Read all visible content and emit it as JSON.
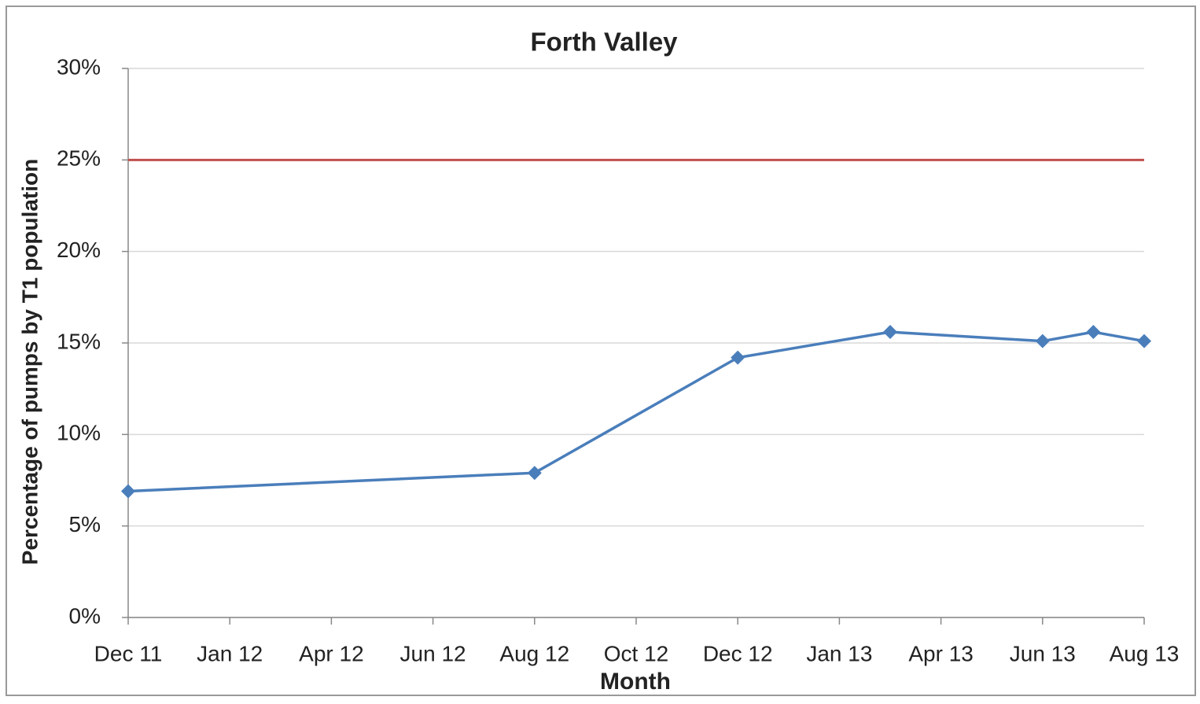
{
  "chart_data": {
    "type": "line",
    "title": "Forth Valley",
    "x_label": "Month",
    "y_label": "Percentage of pumps by T1  population",
    "x": [
      0,
      4,
      6,
      7.5,
      9,
      9.5,
      10
    ],
    "xlim": [
      0,
      10
    ],
    "xticks": [
      {
        "value": 0,
        "label": "Dec 11"
      },
      {
        "value": 1,
        "label": "Jan 12"
      },
      {
        "value": 2,
        "label": "Apr 12"
      },
      {
        "value": 3,
        "label": "Jun 12"
      },
      {
        "value": 4,
        "label": "Aug 12"
      },
      {
        "value": 5,
        "label": "Oct 12"
      },
      {
        "value": 6,
        "label": "Dec 12"
      },
      {
        "value": 7,
        "label": "Jan 13"
      },
      {
        "value": 8,
        "label": "Apr 13"
      },
      {
        "value": 9,
        "label": "Jun 13"
      },
      {
        "value": 10,
        "label": "Aug 13"
      }
    ],
    "series": [
      {
        "color": "#4a7ebb",
        "values": [
          6.9,
          7.9,
          14.2,
          15.6,
          15.1,
          15.6,
          15.1
        ]
      }
    ],
    "reference_line": {
      "value": 25,
      "color": "#c0504d"
    },
    "ylim": [
      0,
      30
    ],
    "yticks": [
      {
        "value": 0,
        "label": "0%"
      },
      {
        "value": 5,
        "label": "5%"
      },
      {
        "value": 10,
        "label": "10%"
      },
      {
        "value": 15,
        "label": "15%"
      },
      {
        "value": 20,
        "label": "20%"
      },
      {
        "value": 25,
        "label": "25%"
      },
      {
        "value": 30,
        "label": "30%"
      }
    ],
    "grid": true
  }
}
